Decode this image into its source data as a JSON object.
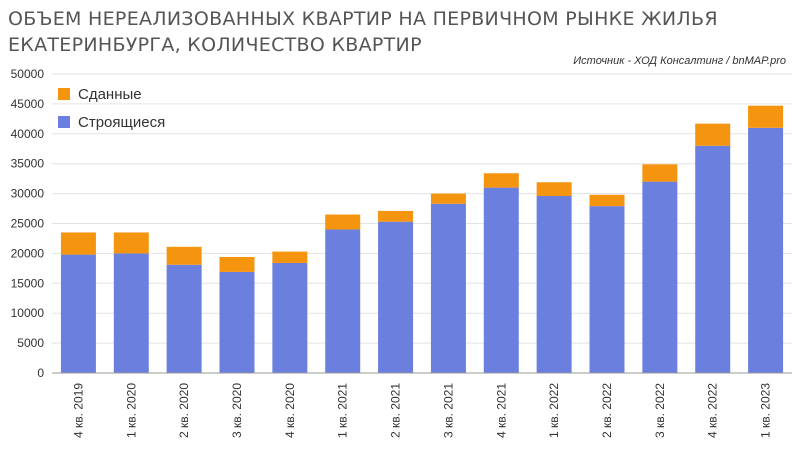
{
  "title_line1": "ОБЪЕМ НЕРЕАЛИЗОВАННЫХ КВАРТИР НА ПЕРВИЧНОМ РЫНКЕ ЖИЛЬЯ",
  "title_line2": "ЕКАТЕРИНБУРГА, КОЛИЧЕСТВО КВАРТИР",
  "source": "Источник - ХОД Консалтинг / bnMAP.pro",
  "colors": {
    "built": "#f5940f",
    "construction": "#6b80de",
    "grid": "#e3e3e3",
    "axis": "#999999"
  },
  "chart_data": {
    "type": "bar",
    "stacked": true,
    "title": "ОБЪЕМ НЕРЕАЛИЗОВАННЫХ КВАРТИР НА ПЕРВИЧНОМ РЫНКЕ ЖИЛЬЯ ЕКАТЕРИНБУРГА, КОЛИЧЕСТВО КВАРТИР",
    "categories": [
      "4 кв. 2019",
      "1 кв. 2020",
      "2 кв. 2020",
      "3 кв. 2020",
      "4 кв. 2020",
      "1 кв. 2021",
      "2 кв. 2021",
      "3 кв. 2021",
      "4 кв. 2021",
      "1 кв. 2022",
      "2 кв. 2022",
      "3 кв. 2022",
      "4 кв. 2022",
      "1 кв. 2023"
    ],
    "series": [
      {
        "name": "Строящиеся",
        "values": [
          19800,
          20000,
          18100,
          16900,
          18400,
          24000,
          25300,
          28300,
          31000,
          29600,
          27900,
          32000,
          38000,
          41000
        ]
      },
      {
        "name": "Сданные",
        "values": [
          3700,
          3500,
          3000,
          2500,
          1900,
          2500,
          1800,
          1700,
          2400,
          2300,
          1900,
          2900,
          3700,
          3700
        ]
      }
    ],
    "yticks": [
      0,
      5000,
      10000,
      15000,
      20000,
      25000,
      30000,
      35000,
      40000,
      45000,
      50000
    ],
    "ylim": [
      0,
      50000
    ],
    "grid": true,
    "legend": "top-left"
  }
}
